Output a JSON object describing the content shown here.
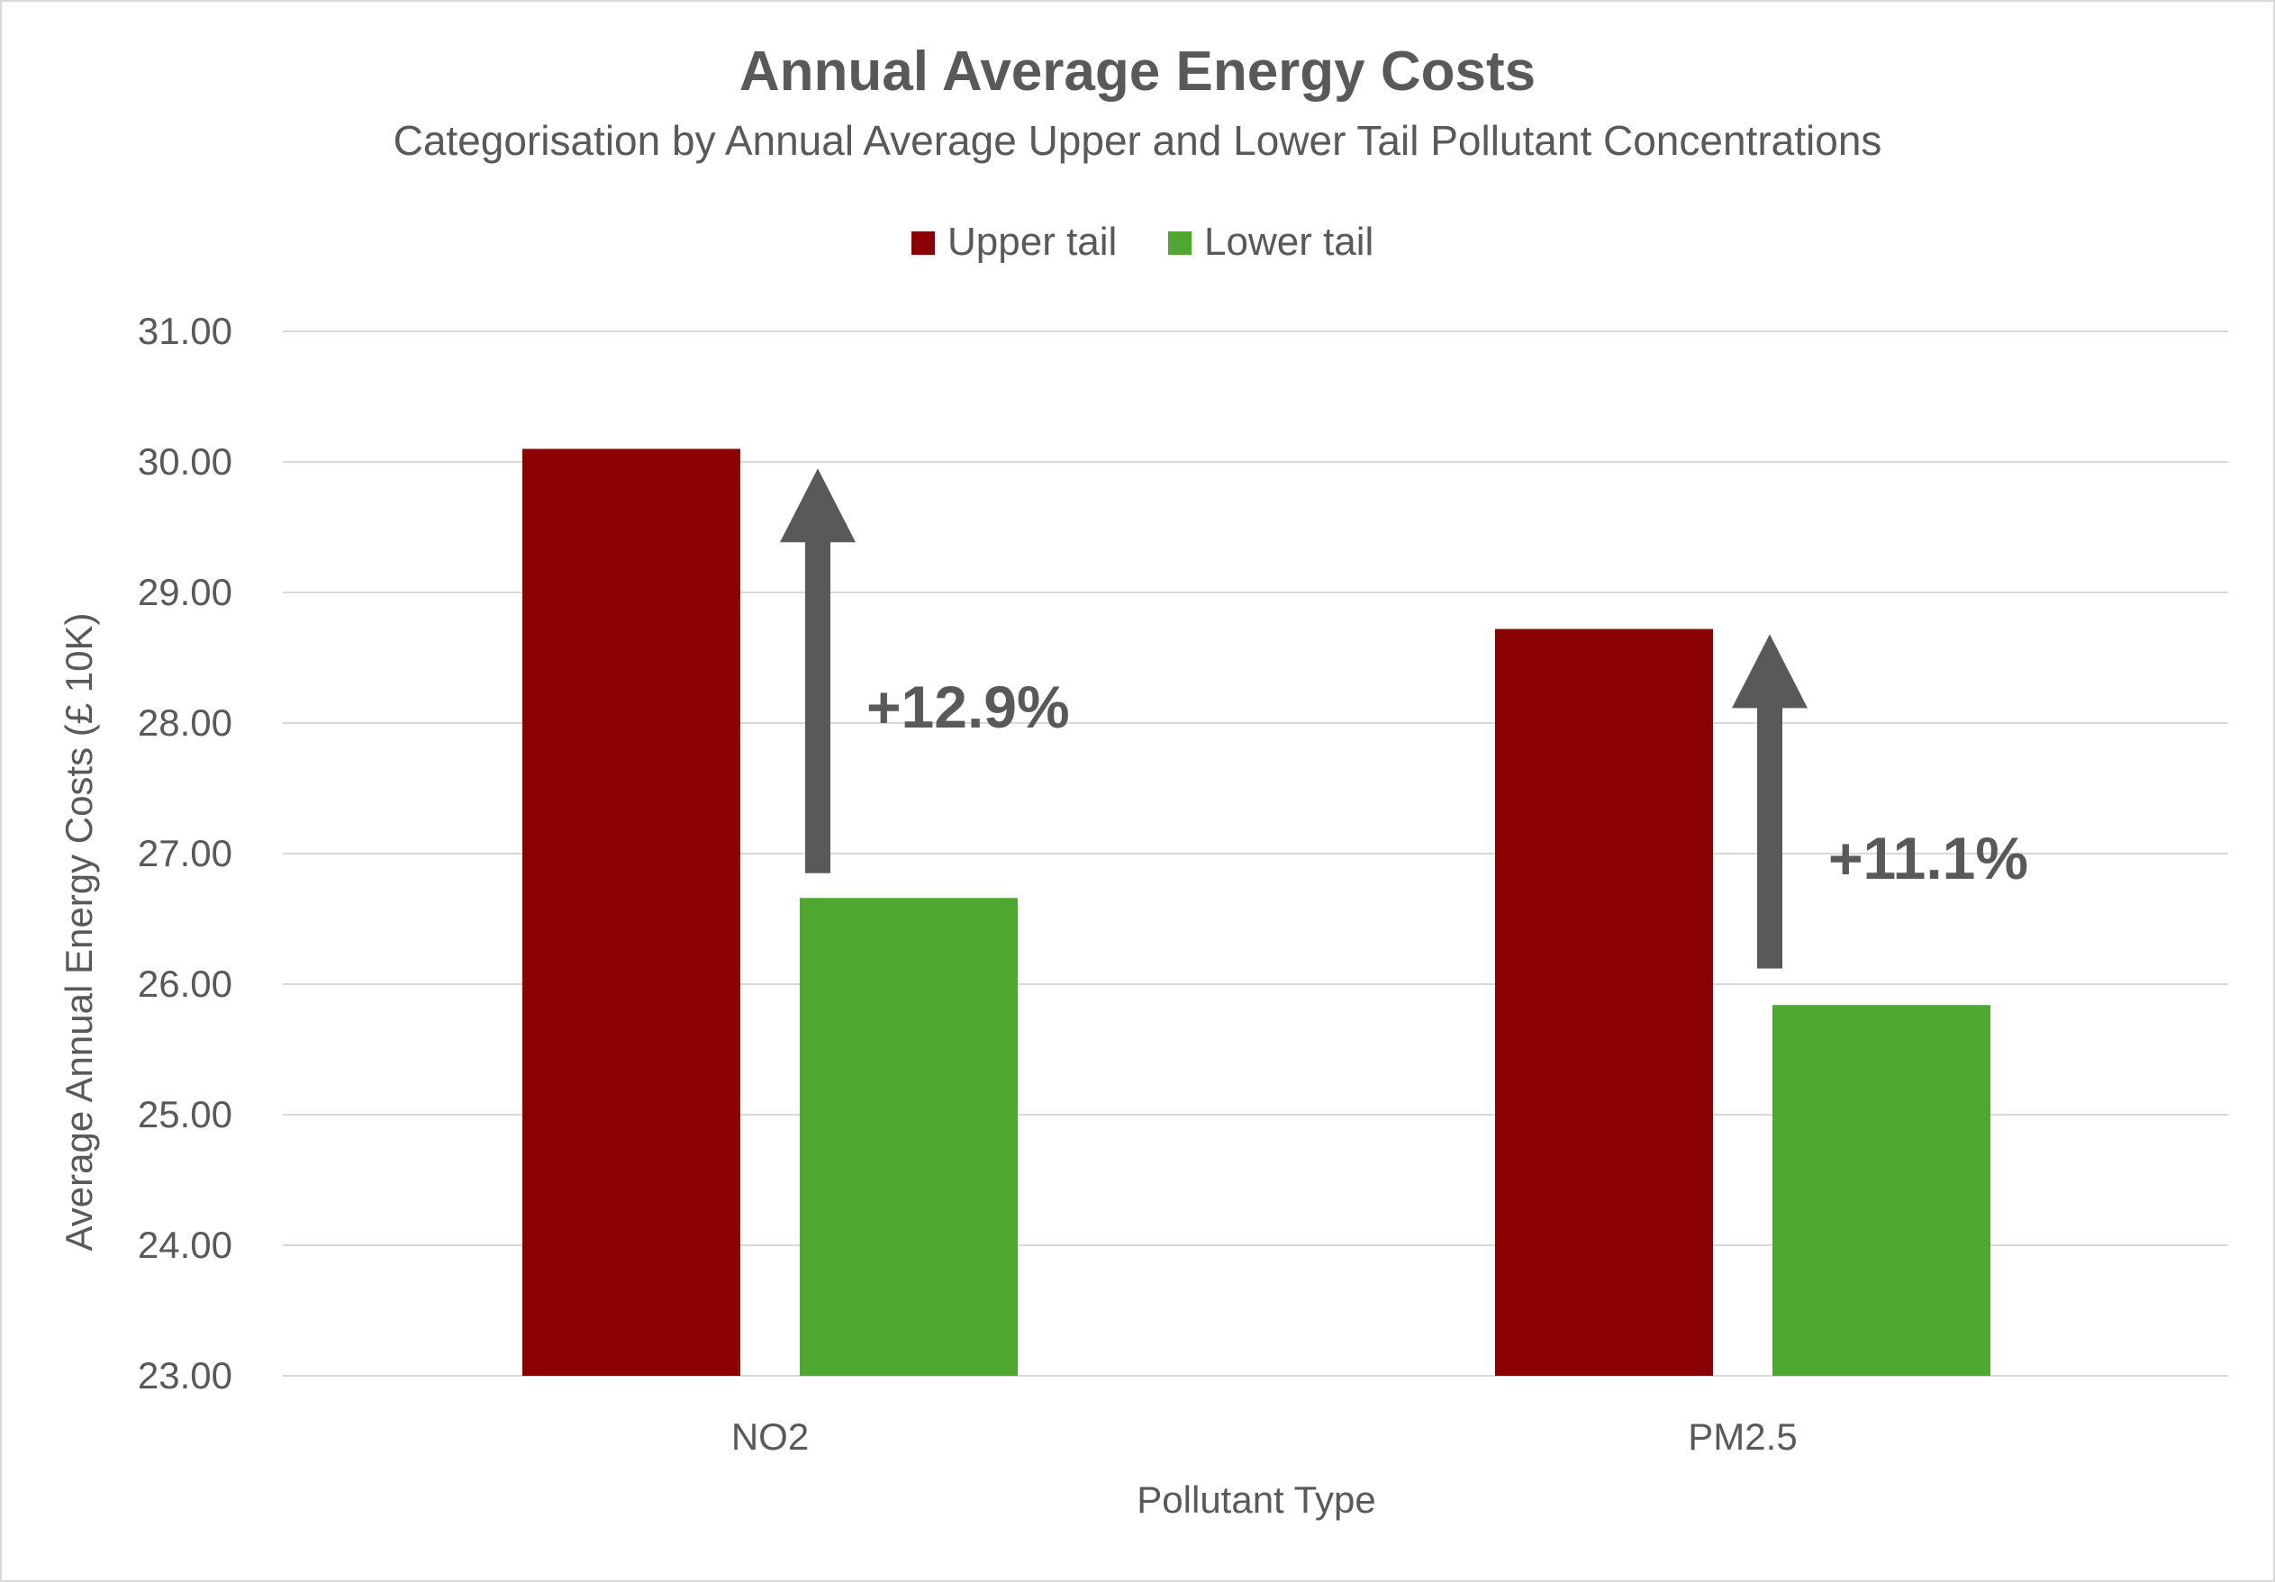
{
  "chart_data": {
    "type": "bar",
    "title": "Annual Average Energy Costs",
    "subtitle": "Categorisation by Annual Average Upper and Lower Tail  Pollutant Concentrations",
    "xlabel": "Pollutant Type",
    "ylabel": "Average Annual  Energy Costs  (£ 10K)",
    "categories": [
      "NO2",
      "PM2.5"
    ],
    "series": [
      {
        "name": "Upper tail",
        "color": "#8b0000",
        "values": [
          30.1,
          28.72
        ]
      },
      {
        "name": "Lower tail",
        "color": "#4ea72e",
        "values": [
          26.66,
          25.84
        ]
      }
    ],
    "ylim": [
      23,
      31
    ],
    "yticks": [
      "23.00",
      "24.00",
      "25.00",
      "26.00",
      "27.00",
      "28.00",
      "29.00",
      "30.00",
      "31.00"
    ],
    "grid": true,
    "legend_position": "top",
    "annotations": [
      {
        "category": "NO2",
        "text": "+12.9%",
        "arrow_from": 26.85,
        "arrow_to": 29.95
      },
      {
        "category": "PM2.5",
        "text": "+11.1%",
        "arrow_from": 26.12,
        "arrow_to": 28.68
      }
    ],
    "arrow_color": "#595959"
  }
}
